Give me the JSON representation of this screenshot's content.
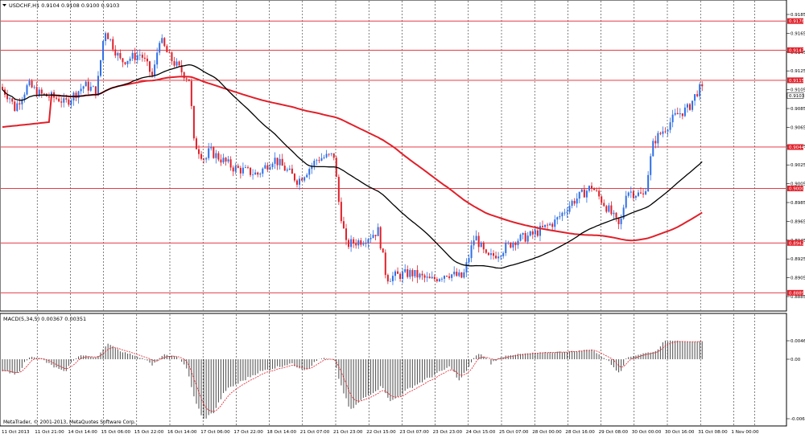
{
  "main_chart": {
    "title": "USDCHF,H1  0.9104 0.9108 0.9100 0.9103",
    "bid_label": "0.9103",
    "axis_ticks": [
      {
        "label": "0.9185",
        "v": 0.9185
      },
      {
        "label": "0.9165",
        "v": 0.9165
      },
      {
        "label": "0.9145",
        "v": 0.9145
      },
      {
        "label": "0.9125",
        "v": 0.9125
      },
      {
        "label": "0.9105",
        "v": 0.9105
      },
      {
        "label": "0.9085",
        "v": 0.9085
      },
      {
        "label": "0.9065",
        "v": 0.9065
      },
      {
        "label": "0.9045",
        "v": 0.9045
      },
      {
        "label": "0.9025",
        "v": 0.9025
      },
      {
        "label": "0.9005",
        "v": 0.9005
      },
      {
        "label": "0.8985",
        "v": 0.8985
      },
      {
        "label": "0.8965",
        "v": 0.8965
      },
      {
        "label": "0.8945",
        "v": 0.8945
      },
      {
        "label": "0.8925",
        "v": 0.8925
      },
      {
        "label": "0.8905",
        "v": 0.8905
      },
      {
        "label": "0.8885",
        "v": 0.8885
      }
    ],
    "levels": [
      {
        "label": "0.9178",
        "v": 0.9178
      },
      {
        "label": "0.9147",
        "v": 0.9147
      },
      {
        "label": "0.9115",
        "v": 0.9115
      },
      {
        "label": "0.9044",
        "v": 0.9044
      },
      {
        "label": "0.9000",
        "v": 0.9
      },
      {
        "label": "0.8942",
        "v": 0.8942
      },
      {
        "label": "0.8889",
        "v": 0.8889
      }
    ],
    "colors": {
      "bull": "#2e6fe6",
      "bear": "#e0202a",
      "level": "#e0202a",
      "ma_fast": "#000000",
      "ma_slow": "#e0202a",
      "grid": "#000000"
    }
  },
  "macd_panel": {
    "title": "MACD(5,34,5) 0.00367 0.00351",
    "axis_ticks": [
      {
        "label": "0.00462",
        "v": 0.00462
      },
      {
        "label": "0.00",
        "v": 0
      },
      {
        "label": "-0.00668",
        "v": -0.00668
      }
    ],
    "colors": {
      "hist": "#5a5a5a",
      "signal": "#e0202a"
    }
  },
  "time_axis": [
    "11 Oct 2013",
    "11 Oct 21:00",
    "14 Oct 14:00",
    "15 Oct 06:00",
    "15 Oct 22:00",
    "16 Oct 14:00",
    "17 Oct 06:00",
    "17 Oct 22:00",
    "18 Oct 14:00",
    "21 Oct 07:00",
    "21 Oct 23:00",
    "22 Oct 15:00",
    "23 Oct 07:00",
    "23 Oct 23:00",
    "24 Oct 15:00",
    "25 Oct 07:00",
    "28 Oct 00:00",
    "28 Oct 16:00",
    "29 Oct 08:00",
    "30 Oct 00:00",
    "30 Oct 16:00",
    "31 Oct 08:00",
    "1 Nov 00:00"
  ],
  "copyright": "MetaTrader, © 2001-2013, MetaQuotes Software Corp."
}
